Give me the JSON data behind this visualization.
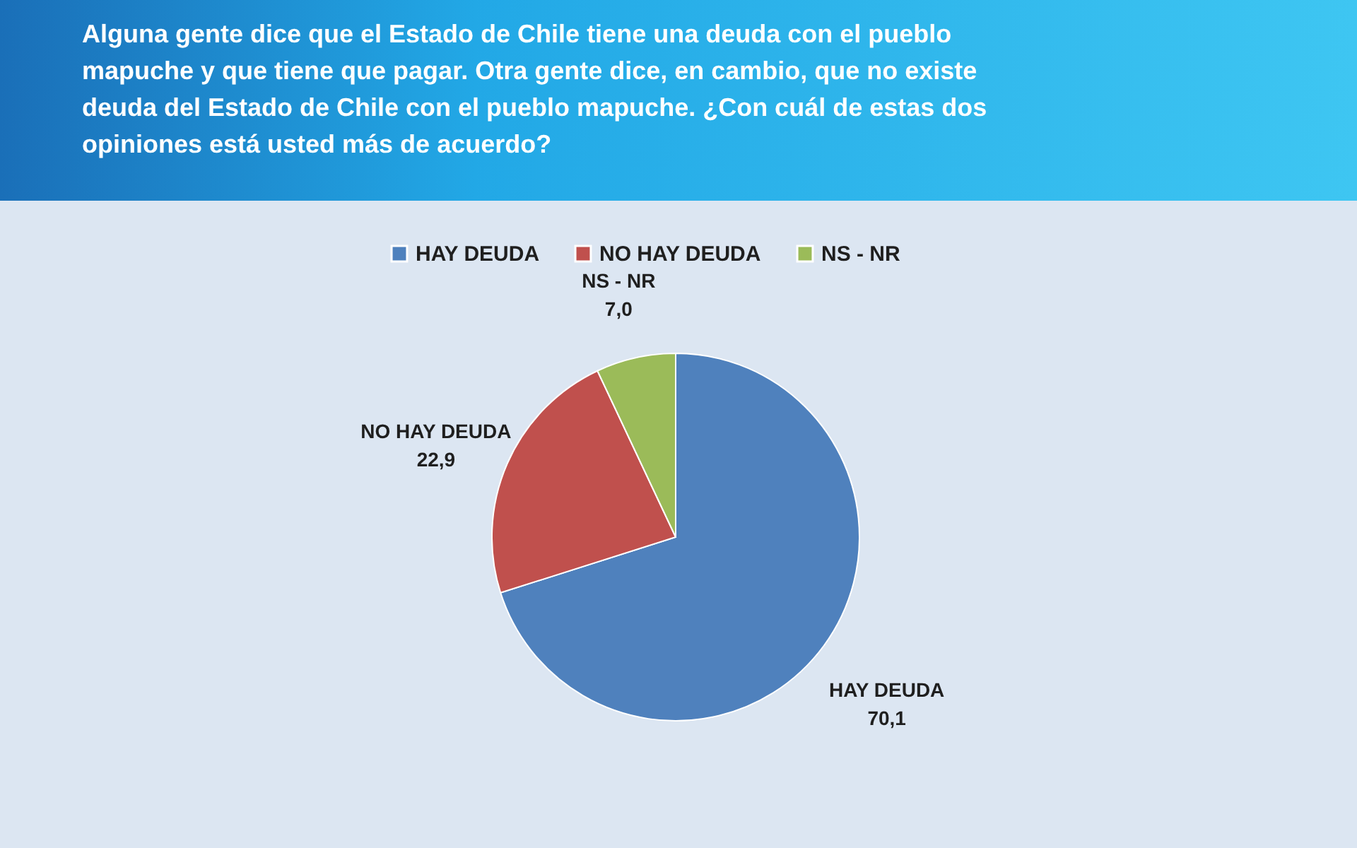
{
  "chart_data": {
    "type": "pie",
    "title": "Alguna gente dice que el Estado de Chile tiene una deuda con el pueblo mapuche y que tiene que pagar. Otra gente dice, en cambio, que no existe deuda del Estado de Chile con el pueblo mapuche. ¿Con cuál de estas dos opiniones está usted más de acuerdo?",
    "categories": [
      "HAY DEUDA",
      "NO HAY DEUDA",
      "NS - NR"
    ],
    "values": [
      70.1,
      22.9,
      7.0
    ],
    "colors": [
      "#4f81bd",
      "#c0504d",
      "#9bbb59"
    ],
    "value_labels": [
      "70,1",
      "22,9",
      "7,0"
    ],
    "legend": "top"
  }
}
